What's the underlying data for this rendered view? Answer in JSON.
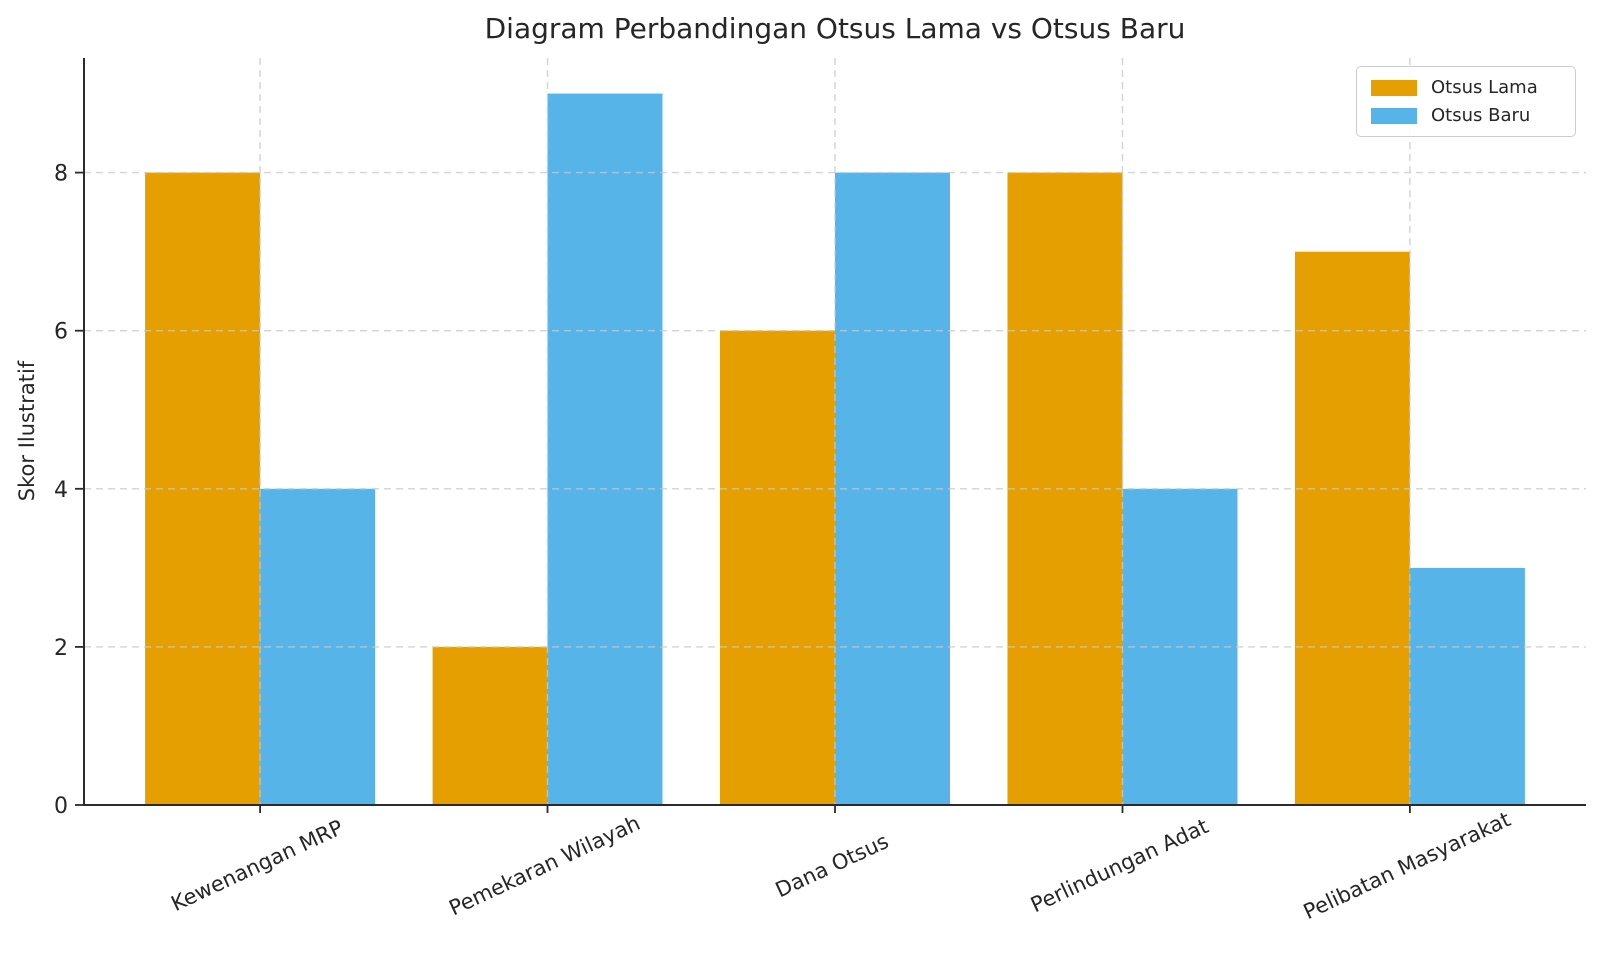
{
  "chart_data": {
    "type": "bar",
    "title": "Diagram Perbandingan Otsus Lama vs Otsus Baru",
    "xlabel": "",
    "ylabel": "Skor Ilustratif",
    "categories": [
      "Kewenangan MRP",
      "Pemekaran Wilayah",
      "Dana Otsus",
      "Perlindungan Adat",
      "Pelibatan Masyarakat"
    ],
    "series": [
      {
        "name": "Otsus Lama",
        "color": "#E69F00",
        "values": [
          8,
          2,
          6,
          8,
          7
        ]
      },
      {
        "name": "Otsus Baru",
        "color": "#56B4E9",
        "values": [
          4,
          9,
          8,
          4,
          3
        ]
      }
    ],
    "ylim": [
      0,
      9.45
    ],
    "yticks": [
      0,
      2,
      4,
      6,
      8
    ],
    "x_tick_rotation_deg": 25,
    "grid": {
      "show": true,
      "axis": "both",
      "line_style": "dashed",
      "color": "#c9c9c9",
      "drawn_above_bars": true
    },
    "legend": {
      "position": "upper-right",
      "entries": [
        "Otsus Lama",
        "Otsus Baru"
      ]
    }
  },
  "colors": {
    "background": "#ffffff",
    "text": "#262626",
    "spine": "#2b2b2b",
    "grid": "#c9c9c9"
  }
}
